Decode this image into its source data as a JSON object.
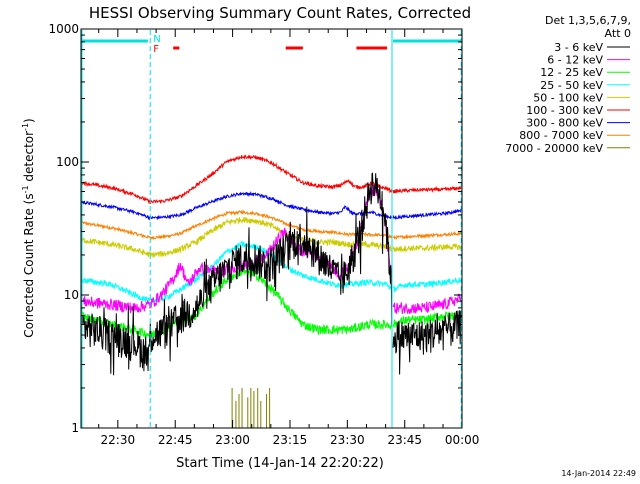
{
  "chart_data": {
    "type": "line",
    "title": "HESSI Observing Summary Count Rates, Corrected",
    "xlabel": "Start Time (14-Jan-14 22:20:22)",
    "ylabel_main": "Corrected Count Rate (s",
    "ylabel_sup1": "-1",
    "ylabel_mid": " detector",
    "ylabel_sup2": "-1",
    "ylabel_end": ")",
    "y_scale": "log",
    "ylim": [
      1,
      1000
    ],
    "y_ticks": [
      {
        "value": 1,
        "label": "1"
      },
      {
        "value": 10,
        "label": "10"
      },
      {
        "value": 100,
        "label": "100"
      },
      {
        "value": 1000,
        "label": "1000"
      }
    ],
    "xlim_minutes": [
      0,
      99.6
    ],
    "x_ticks": [
      {
        "minute": 9.63,
        "label": "22:30"
      },
      {
        "minute": 24.63,
        "label": "22:45"
      },
      {
        "minute": 39.63,
        "label": "23:00"
      },
      {
        "minute": 54.63,
        "label": "23:15"
      },
      {
        "minute": 69.63,
        "label": "23:30"
      },
      {
        "minute": 84.63,
        "label": "23:45"
      },
      {
        "minute": 99.63,
        "label": "00:00"
      }
    ],
    "legend_title_1": "Det 1,3,5,6,7,9,",
    "legend_title_2": "Att 0",
    "legend_position": "right",
    "timestamp": "14-Jan-2014 22:49",
    "flag_labels": {
      "night": "N",
      "flare": "F"
    },
    "flag_colors": {
      "night": "#00e0e0",
      "flare": "#ff0000"
    },
    "eclipse_lines_minutes": [
      18.1,
      81.3,
      99.4
    ],
    "night_flag_segments": [
      [
        0,
        17.5
      ],
      [
        81.3,
        99.4
      ]
    ],
    "flare_flag_segments": [
      [
        24.1,
        25.7
      ],
      [
        53.5,
        58.0
      ],
      [
        72.0,
        80.0
      ]
    ],
    "data_gaps_minutes": [
      [
        81.3,
        81.6
      ]
    ],
    "series": [
      {
        "name": "3 - 6 keV",
        "color": "#000000",
        "noise": 0.3,
        "spiky": true,
        "points": [
          [
            0,
            6
          ],
          [
            8,
            5
          ],
          [
            14,
            4.5
          ],
          [
            17.5,
            3.5
          ],
          [
            18.1,
            5
          ],
          [
            22,
            5.5
          ],
          [
            26,
            7
          ],
          [
            30,
            8
          ],
          [
            35,
            13
          ],
          [
            40,
            18
          ],
          [
            44,
            20
          ],
          [
            49,
            17
          ],
          [
            53,
            22
          ],
          [
            57,
            28
          ],
          [
            61,
            22
          ],
          [
            66,
            15
          ],
          [
            68,
            13
          ],
          [
            70,
            16
          ],
          [
            73,
            30
          ],
          [
            75,
            55
          ],
          [
            76,
            70
          ],
          [
            78,
            60
          ],
          [
            79.5,
            40
          ],
          [
            81,
            14
          ],
          [
            81.4,
            5
          ],
          [
            85,
            5
          ],
          [
            90,
            5
          ],
          [
            95,
            5.5
          ],
          [
            99.4,
            6
          ]
        ]
      },
      {
        "name": "6 - 12 keV",
        "color": "#ff00ff",
        "noise": 0.1,
        "points": [
          [
            0,
            9
          ],
          [
            8,
            8.5
          ],
          [
            14,
            8
          ],
          [
            18.1,
            8.5
          ],
          [
            21,
            10
          ],
          [
            24,
            13
          ],
          [
            26,
            17
          ],
          [
            28,
            12
          ],
          [
            31,
            16
          ],
          [
            35,
            15
          ],
          [
            40,
            16
          ],
          [
            44,
            17
          ],
          [
            48,
            19
          ],
          [
            53,
            30
          ],
          [
            57,
            22
          ],
          [
            62,
            20
          ],
          [
            66,
            16
          ],
          [
            68,
            14
          ],
          [
            70,
            17
          ],
          [
            73,
            30
          ],
          [
            75,
            55
          ],
          [
            76.5,
            62
          ],
          [
            78,
            55
          ],
          [
            79.5,
            35
          ],
          [
            81,
            14
          ],
          [
            81.5,
            8
          ],
          [
            85,
            8
          ],
          [
            90,
            8
          ],
          [
            95,
            8.5
          ],
          [
            99.4,
            9.5
          ]
        ]
      },
      {
        "name": "12 - 25 keV",
        "color": "#00ff00",
        "noise": 0.08,
        "points": [
          [
            0,
            7
          ],
          [
            8,
            6
          ],
          [
            14,
            5.5
          ],
          [
            18.1,
            5
          ],
          [
            22,
            5.5
          ],
          [
            26,
            6.5
          ],
          [
            30,
            7
          ],
          [
            34,
            10
          ],
          [
            38,
            13
          ],
          [
            42,
            15
          ],
          [
            46,
            14
          ],
          [
            50,
            11
          ],
          [
            54,
            8
          ],
          [
            58,
            6
          ],
          [
            62,
            5.5
          ],
          [
            66,
            5.5
          ],
          [
            70,
            5.5
          ],
          [
            75,
            6
          ],
          [
            80,
            6
          ],
          [
            81.5,
            6
          ],
          [
            85,
            6.5
          ],
          [
            90,
            6.5
          ],
          [
            95,
            7
          ],
          [
            99.4,
            7
          ]
        ]
      },
      {
        "name": "25 - 50 keV",
        "color": "#00ffff",
        "noise": 0.05,
        "points": [
          [
            0,
            13
          ],
          [
            8,
            12
          ],
          [
            14,
            10
          ],
          [
            18.1,
            9
          ],
          [
            22,
            9.5
          ],
          [
            26,
            11
          ],
          [
            30,
            13
          ],
          [
            34,
            16
          ],
          [
            38,
            21
          ],
          [
            42,
            24
          ],
          [
            46,
            23
          ],
          [
            50,
            20
          ],
          [
            54,
            16
          ],
          [
            58,
            14
          ],
          [
            62,
            13
          ],
          [
            66,
            12
          ],
          [
            70,
            12
          ],
          [
            75,
            12.5
          ],
          [
            80,
            12
          ],
          [
            81.5,
            11
          ],
          [
            85,
            12
          ],
          [
            90,
            12
          ],
          [
            95,
            12.5
          ],
          [
            99.4,
            13
          ]
        ]
      },
      {
        "name": "50 - 100 keV",
        "color": "#cccc00",
        "noise": 0.05,
        "points": [
          [
            0,
            26
          ],
          [
            8,
            24
          ],
          [
            14,
            22
          ],
          [
            18.1,
            20
          ],
          [
            22,
            20.5
          ],
          [
            26,
            22
          ],
          [
            30,
            25
          ],
          [
            34,
            30
          ],
          [
            38,
            35
          ],
          [
            42,
            37
          ],
          [
            46,
            36
          ],
          [
            50,
            33
          ],
          [
            54,
            28
          ],
          [
            58,
            26
          ],
          [
            62,
            25
          ],
          [
            66,
            25
          ],
          [
            70,
            24
          ],
          [
            75,
            24
          ],
          [
            80,
            23
          ],
          [
            81.5,
            22
          ],
          [
            85,
            22.5
          ],
          [
            90,
            22.5
          ],
          [
            95,
            23
          ],
          [
            99.4,
            23
          ]
        ]
      },
      {
        "name": "100 - 300 keV",
        "color": "#ff0000",
        "noise": 0.03,
        "points": [
          [
            0,
            70
          ],
          [
            8,
            64
          ],
          [
            14,
            57
          ],
          [
            18.1,
            50
          ],
          [
            22,
            51
          ],
          [
            26,
            55
          ],
          [
            30,
            66
          ],
          [
            34,
            80
          ],
          [
            38,
            100
          ],
          [
            42,
            110
          ],
          [
            46,
            108
          ],
          [
            50,
            98
          ],
          [
            54,
            82
          ],
          [
            58,
            70
          ],
          [
            62,
            66
          ],
          [
            66,
            65
          ],
          [
            68,
            67
          ],
          [
            70,
            73
          ],
          [
            71.5,
            65
          ],
          [
            74,
            65
          ],
          [
            76,
            70
          ],
          [
            78,
            65
          ],
          [
            80,
            63
          ],
          [
            81.5,
            60
          ],
          [
            85,
            61
          ],
          [
            90,
            62
          ],
          [
            95,
            62
          ],
          [
            99.4,
            64
          ]
        ]
      },
      {
        "name": "300 - 800 keV",
        "color": "#0000ff",
        "noise": 0.025,
        "points": [
          [
            0,
            50
          ],
          [
            8,
            46
          ],
          [
            14,
            42
          ],
          [
            18.1,
            38
          ],
          [
            22,
            38.5
          ],
          [
            26,
            40
          ],
          [
            30,
            45
          ],
          [
            34,
            50
          ],
          [
            38,
            55
          ],
          [
            42,
            58
          ],
          [
            46,
            57
          ],
          [
            50,
            53
          ],
          [
            54,
            47
          ],
          [
            58,
            44
          ],
          [
            62,
            42
          ],
          [
            66,
            41
          ],
          [
            68,
            42
          ],
          [
            69,
            46
          ],
          [
            71,
            41
          ],
          [
            74,
            41
          ],
          [
            76,
            42
          ],
          [
            78,
            40
          ],
          [
            80,
            39
          ],
          [
            81.5,
            38
          ],
          [
            85,
            39
          ],
          [
            90,
            40
          ],
          [
            95,
            41
          ],
          [
            99.4,
            43
          ]
        ]
      },
      {
        "name": "800 - 7000 keV",
        "color": "#ff8000",
        "noise": 0.025,
        "points": [
          [
            0,
            35
          ],
          [
            8,
            32
          ],
          [
            14,
            29
          ],
          [
            18.1,
            27
          ],
          [
            22,
            27.5
          ],
          [
            26,
            29
          ],
          [
            30,
            33
          ],
          [
            34,
            37
          ],
          [
            38,
            41
          ],
          [
            42,
            42
          ],
          [
            46,
            41
          ],
          [
            50,
            38
          ],
          [
            54,
            34
          ],
          [
            58,
            31
          ],
          [
            62,
            30
          ],
          [
            66,
            29.5
          ],
          [
            70,
            28.5
          ],
          [
            75,
            28.5
          ],
          [
            80,
            28
          ],
          [
            81.5,
            27
          ],
          [
            85,
            27.5
          ],
          [
            90,
            28
          ],
          [
            95,
            28.5
          ],
          [
            99.4,
            29
          ]
        ]
      },
      {
        "name": "7000 - 20000 keV",
        "color": "#808000",
        "noise": 0,
        "special": "bursts",
        "bursts": [
          [
            39.5,
            2.0
          ],
          [
            40.5,
            1.6
          ],
          [
            41.3,
            1.8
          ],
          [
            42.1,
            2.0
          ],
          [
            43.6,
            1.7
          ],
          [
            44.4,
            2.0
          ],
          [
            45.2,
            1.9
          ],
          [
            46.2,
            2.0
          ],
          [
            47.0,
            1.6
          ],
          [
            48.5,
            1.8
          ],
          [
            49.3,
            2.0
          ]
        ]
      }
    ]
  }
}
